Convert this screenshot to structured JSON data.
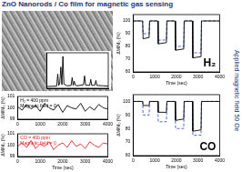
{
  "title": "ZnO Nanorods / Co film for magnetic gas sensing",
  "side_label": "Applied magnetic field 50 Oe",
  "chart_data": [
    {
      "type": "line",
      "x": [
        20,
        30,
        31,
        32,
        33,
        34,
        35,
        36,
        37,
        40,
        44,
        45,
        46,
        47,
        48,
        50,
        56,
        57,
        58,
        62,
        63,
        64,
        67,
        68,
        69,
        75,
        80
      ],
      "values": [
        5,
        6,
        40,
        8,
        15,
        60,
        10,
        90,
        12,
        7,
        8,
        30,
        8,
        20,
        9,
        7,
        10,
        35,
        9,
        8,
        25,
        8,
        9,
        22,
        8,
        7,
        6
      ],
      "color": "#000000",
      "xlim": [
        20,
        80
      ],
      "ylim": [
        0,
        100
      ],
      "xticks": [],
      "yticks": [],
      "grid": false,
      "tick_labels": false
    },
    {
      "type": "line",
      "x": [
        0,
        440,
        460,
        740,
        760,
        1140,
        1160,
        1540,
        1560,
        1940,
        1960,
        2340,
        2360,
        2740,
        2760,
        3140,
        3160,
        4000
      ],
      "series": [
        {
          "color": "#000000",
          "line_style": "solid",
          "values": [
            100,
            100,
            86,
            87,
            100,
            100,
            82,
            83,
            100,
            100,
            77,
            78,
            100,
            100,
            71,
            72,
            100,
            100
          ]
        },
        {
          "color": "#3355cc",
          "line_style": "dashed",
          "values": [
            100,
            100,
            90,
            90,
            100,
            100,
            85,
            85,
            100,
            100,
            80,
            80,
            100,
            100,
            75,
            75,
            100,
            100
          ]
        }
      ],
      "annotations": [
        "H₂"
      ],
      "x_label": "Time (sec)",
      "y_label": "ΔM/M₀ (%)",
      "xlim": [
        0,
        4000
      ],
      "ylim": [
        60,
        105
      ],
      "xticks": [
        0,
        1000,
        2000,
        3000,
        4000
      ],
      "yticks": [
        60,
        70,
        80,
        90,
        100
      ],
      "grid": false
    },
    {
      "type": "line",
      "x": [
        0,
        440,
        460,
        740,
        760,
        1140,
        1160,
        1540,
        1560,
        1940,
        1960,
        2340,
        2360,
        2740,
        2760,
        3140,
        3160,
        4000
      ],
      "series": [
        {
          "color": "#000000",
          "line_style": "solid",
          "values": [
            100,
            100,
            97,
            97,
            100,
            100,
            92,
            92,
            100,
            100,
            86,
            87,
            100,
            100,
            78,
            79,
            100,
            100
          ]
        },
        {
          "color": "#3355cc",
          "line_style": "dashed",
          "values": [
            100,
            100,
            90,
            90,
            100,
            100,
            85,
            85,
            100,
            100,
            80,
            80,
            100,
            100,
            75,
            75,
            100,
            100
          ]
        }
      ],
      "annotations": [
        "CO"
      ],
      "x_label": "Time (sec)",
      "y_label": "ΔM/M₀ (%)",
      "xlim": [
        0,
        4000
      ],
      "ylim": [
        60,
        105
      ],
      "xticks": [
        0,
        1000,
        2000,
        3000,
        4000
      ],
      "yticks": [
        60,
        70,
        80,
        90,
        100
      ],
      "grid": false
    },
    {
      "type": "line",
      "x": [
        0,
        200,
        400,
        600,
        800,
        1000,
        1200,
        1400,
        1600,
        1800,
        2000,
        2200,
        2400,
        2600,
        2800,
        3000,
        3200,
        3400,
        3600,
        3800,
        4000
      ],
      "values": [
        100.1,
        99.8,
        100.3,
        99.9,
        100.2,
        99.7,
        100.4,
        100.0,
        99.8,
        100.3,
        99.6,
        100.2,
        100.0,
        99.9,
        100.4,
        99.7,
        100.1,
        99.8,
        100.3,
        100.0,
        99.9
      ],
      "color": "#000000",
      "annotations": [
        "H₂ = 400 ppm",
        "Magnetic field = 0"
      ],
      "y_label": "ΔM/M₀ (%)",
      "xlim": [
        0,
        4000
      ],
      "ylim": [
        99,
        101
      ],
      "xticks": [
        0,
        1000,
        2000,
        3000,
        4000
      ],
      "yticks": [
        99,
        100,
        101
      ],
      "grid": false
    },
    {
      "type": "line",
      "x": [
        0,
        200,
        400,
        600,
        800,
        1000,
        1200,
        1400,
        1600,
        1800,
        2000,
        2200,
        2400,
        2600,
        2800,
        3000,
        3200,
        3400,
        3600,
        3800,
        4000
      ],
      "values": [
        99.9,
        100.2,
        99.8,
        100.4,
        99.7,
        100.1,
        99.9,
        100.3,
        99.6,
        100.0,
        100.2,
        99.8,
        100.4,
        99.9,
        100.1,
        99.7,
        100.3,
        100.0,
        99.8,
        100.2,
        100.1
      ],
      "color": "#dd2222",
      "annotations": [
        "CO = 400 ppm",
        "Magnetic field = 0"
      ],
      "x_label": "Time (sec)",
      "y_label": "ΔM/M₀ (%)",
      "xlim": [
        0,
        4000
      ],
      "ylim": [
        99,
        101
      ],
      "xticks": [
        0,
        1000,
        2000,
        3000,
        4000
      ],
      "yticks": [
        99,
        100,
        101
      ],
      "grid": false
    }
  ]
}
